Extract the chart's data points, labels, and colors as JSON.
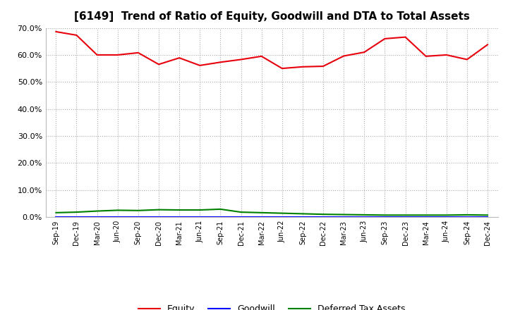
{
  "title": "[6149]  Trend of Ratio of Equity, Goodwill and DTA to Total Assets",
  "labels": [
    "Sep-19",
    "Dec-19",
    "Mar-20",
    "Jun-20",
    "Sep-20",
    "Dec-20",
    "Mar-21",
    "Jun-21",
    "Sep-21",
    "Dec-21",
    "Mar-22",
    "Jun-22",
    "Sep-22",
    "Dec-22",
    "Mar-23",
    "Jun-23",
    "Sep-23",
    "Dec-23",
    "Mar-24",
    "Jun-24",
    "Sep-24",
    "Dec-24"
  ],
  "equity": [
    0.686,
    0.673,
    0.6,
    0.6,
    0.608,
    0.565,
    0.589,
    0.561,
    0.573,
    0.583,
    0.595,
    0.55,
    0.556,
    0.558,
    0.596,
    0.61,
    0.66,
    0.666,
    0.595,
    0.6,
    0.583,
    0.638
  ],
  "goodwill": [
    0.0,
    0.0,
    0.0,
    0.0,
    0.0,
    0.0,
    0.0,
    0.0,
    0.0,
    0.0,
    0.0,
    0.0,
    0.0,
    0.0,
    0.0,
    0.0,
    0.0,
    0.0,
    0.0,
    0.0,
    0.0,
    0.0
  ],
  "dta": [
    0.016,
    0.018,
    0.022,
    0.025,
    0.024,
    0.027,
    0.026,
    0.026,
    0.029,
    0.018,
    0.016,
    0.014,
    0.012,
    0.01,
    0.009,
    0.008,
    0.007,
    0.007,
    0.007,
    0.007,
    0.008,
    0.007
  ],
  "equity_color": "#e8000d",
  "goodwill_color": "#0000ff",
  "dta_color": "#008000",
  "ylim": [
    0.0,
    0.7
  ],
  "yticks": [
    0.0,
    0.1,
    0.2,
    0.3,
    0.4,
    0.5,
    0.6,
    0.7
  ],
  "background_color": "#ffffff",
  "plot_background": "#ffffff",
  "grid_color": "#aaaaaa",
  "title_fontsize": 11,
  "legend_labels": [
    "Equity",
    "Goodwill",
    "Deferred Tax Assets"
  ]
}
